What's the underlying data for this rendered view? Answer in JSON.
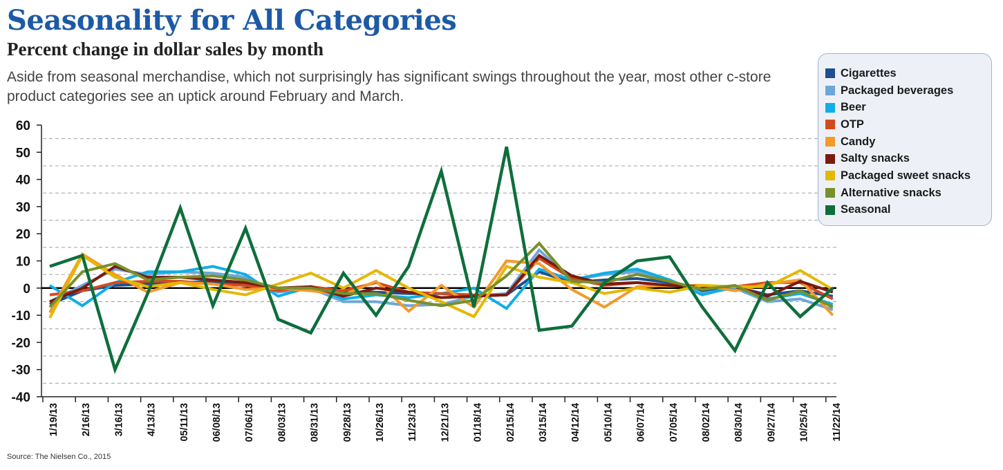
{
  "chart_data": {
    "type": "line",
    "title": "Seasonality for All Categories",
    "subtitle": "Percent change in dollar sales by month",
    "description": "Aside from seasonal merchandise, which not surprisingly has significant swings throughout the year, most other c-store product categories see an uptick around February and March.",
    "source": "Source: The Nielsen Co., 2015",
    "xlabel": "",
    "ylabel": "",
    "ylim": [
      -40,
      60
    ],
    "yticks": [
      -40,
      -30,
      -20,
      -10,
      0,
      10,
      20,
      30,
      40,
      50,
      60
    ],
    "legend_position": "top-right",
    "grid": true,
    "x": [
      "1/19/13",
      "2/16/13",
      "3/16/13",
      "4/13/13",
      "05/11/13",
      "06/08/13",
      "07/06/13",
      "08/03/13",
      "08/31/13",
      "09/28/13",
      "10/26/13",
      "11/23/13",
      "12/21/13",
      "01/18/14",
      "02/15/14",
      "03/15/14",
      "04/12/14",
      "05/10/14",
      "06/07/14",
      "07/05/14",
      "08/02/14",
      "08/30/14",
      "09/27/14",
      "10/25/14",
      "11/22/14"
    ],
    "series": [
      {
        "name": "Cigarettes",
        "color": "#1d4f91",
        "values": [
          -6,
          -1,
          1,
          1.5,
          2,
          2.5,
          1,
          -0.5,
          0.5,
          -1.5,
          -1.5,
          -2,
          -2,
          -3,
          -2.5,
          6,
          2,
          3,
          3.5,
          2,
          -1,
          0.5,
          -2.5,
          -1,
          -3
        ]
      },
      {
        "name": "Packaged beverages",
        "color": "#6ea6d9",
        "values": [
          -5,
          1,
          7,
          5,
          6,
          5.5,
          4,
          -1.5,
          0,
          -5,
          -5,
          -6.5,
          -6,
          -3,
          -2,
          14,
          3,
          5,
          6,
          3,
          -2,
          0,
          -5,
          -4,
          -8
        ]
      },
      {
        "name": "Beer",
        "color": "#10aee6",
        "values": [
          1,
          -6.5,
          2,
          6,
          6,
          8,
          5,
          -3,
          0.5,
          -4,
          -2.5,
          -3.5,
          -2,
          0,
          -7.5,
          7,
          3,
          5.5,
          7,
          3,
          -2.5,
          0.5,
          -4,
          -2,
          -6
        ]
      },
      {
        "name": "OTP",
        "color": "#d34a1f",
        "values": [
          -2.5,
          -1,
          2,
          2.5,
          2.5,
          1.5,
          1,
          -1,
          0.5,
          -1,
          2,
          -1.5,
          -2,
          -2.5,
          -2.5,
          11,
          3.5,
          1,
          2,
          1,
          0.5,
          0.5,
          2,
          2,
          -4
        ]
      },
      {
        "name": "Candy",
        "color": "#f39a2b",
        "values": [
          -9,
          12.5,
          5,
          -1.5,
          2,
          1.5,
          -0.5,
          0,
          -1,
          -2.5,
          2.5,
          -8.5,
          1,
          -7,
          10,
          9,
          -0.5,
          -7,
          0.5,
          1,
          1,
          -1,
          1.5,
          3,
          -10
        ]
      },
      {
        "name": "Salty snacks",
        "color": "#7a1a10",
        "values": [
          -5,
          0,
          8,
          4,
          4,
          3,
          2,
          0,
          0.5,
          -3,
          0,
          -1.5,
          -3.5,
          -3,
          -2.5,
          12,
          4.5,
          1.5,
          2,
          1,
          0.5,
          0.5,
          -3,
          2.5,
          -1.5
        ]
      },
      {
        "name": "Packaged sweet snacks",
        "color": "#e5b800",
        "values": [
          -11,
          12,
          4,
          0.5,
          2,
          -0.5,
          -2.5,
          1.5,
          5.5,
          0,
          6.5,
          0,
          -5,
          -10.5,
          8,
          4,
          2,
          -2,
          0,
          -1.5,
          1,
          0.5,
          0.5,
          6.5,
          -0.5
        ]
      },
      {
        "name": "Alternative snacks",
        "color": "#78902a",
        "values": [
          -7,
          6,
          9,
          3,
          4,
          4.5,
          3,
          0,
          0,
          -2,
          -2,
          -4.5,
          -6.5,
          -4.5,
          4.5,
          16.5,
          2.5,
          2,
          5,
          2.5,
          -0.5,
          1,
          -4.5,
          -1,
          -7
        ]
      },
      {
        "name": "Seasonal",
        "color": "#0e6e3b",
        "values": [
          8,
          12,
          -30,
          -2,
          29.5,
          -6.5,
          22,
          -11.5,
          -16.5,
          5.5,
          -10,
          8,
          43,
          -7,
          52,
          -15.5,
          -14,
          2,
          10,
          11.5,
          -7,
          -23,
          2,
          -10.5,
          0
        ]
      }
    ]
  }
}
